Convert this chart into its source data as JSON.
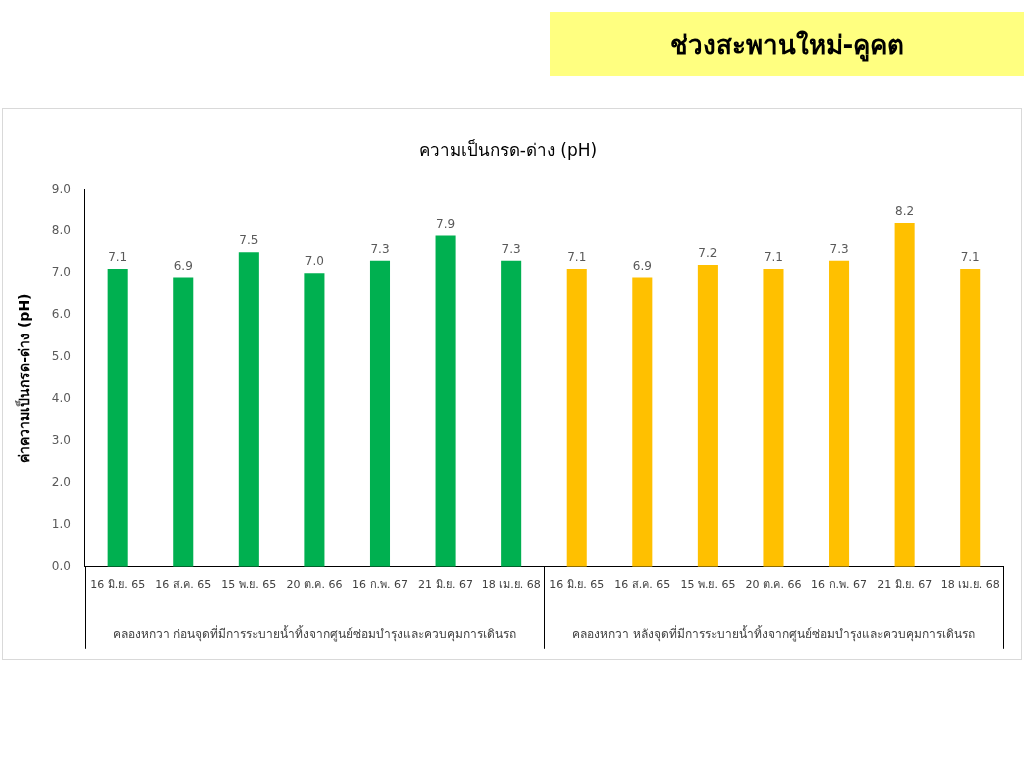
{
  "chart_data": {
    "type": "bar",
    "title": "ช่วงสะพานใหม่-คูคต",
    "subtitle": "ความเป็นกรด-ด่าง (pH)",
    "ylabel": "ค่าความเป็นกรด-ด่าง (pH)",
    "categories": [
      "16 มิ.ย. 65",
      "16 ส.ค. 65",
      "15 พ.ย. 65",
      "20 ต.ค. 66",
      "16 ก.พ. 67",
      "21 มิ.ย. 67",
      "18 เม.ย. 68",
      "16 มิ.ย. 65",
      "16 ส.ค. 65",
      "15 พ.ย. 65",
      "20 ต.ค. 66",
      "16 ก.พ. 67",
      "21 มิ.ย. 67",
      "18 เม.ย. 68"
    ],
    "values": [
      7.1,
      6.9,
      7.5,
      7.0,
      7.3,
      7.9,
      7.3,
      7.1,
      6.9,
      7.2,
      7.1,
      7.3,
      8.2,
      7.1
    ],
    "value_labels": [
      "7.1",
      "6.9",
      "7.5",
      "7.0",
      "7.3",
      "7.9",
      "7.3",
      "7.1",
      "6.9",
      "7.2",
      "7.1",
      "7.3",
      "8.2",
      "7.1"
    ],
    "colors": [
      "#00b050",
      "#00b050",
      "#00b050",
      "#00b050",
      "#00b050",
      "#00b050",
      "#00b050",
      "#ffc000",
      "#ffc000",
      "#ffc000",
      "#ffc000",
      "#ffc000",
      "#ffc000",
      "#ffc000"
    ],
    "annotations": [
      "คลองหกวา ก่อนจุดที่มีการระบายน้ำทิ้งจากศูนย์ซ่อมบำรุงและควบคุมการเดินรถ",
      "คลองหกวา หลังจุดที่มีการระบายน้ำทิ้งจากศูนย์ซ่อมบำรุงและควบคุมการเดินรถ"
    ],
    "ylim": [
      0,
      9
    ],
    "yticks": [
      {
        "value": 0,
        "label": "0.0"
      },
      {
        "value": 1,
        "label": "1.0"
      },
      {
        "value": 2,
        "label": "2.0"
      },
      {
        "value": 3,
        "label": "3.0"
      },
      {
        "value": 4,
        "label": "4.0"
      },
      {
        "value": 5,
        "label": "5.0"
      },
      {
        "value": 6,
        "label": "6.0"
      },
      {
        "value": 7,
        "label": "7.0"
      },
      {
        "value": 8,
        "label": "8.0"
      },
      {
        "value": 9,
        "label": "9.0"
      }
    ],
    "grid": false,
    "legend": false
  }
}
